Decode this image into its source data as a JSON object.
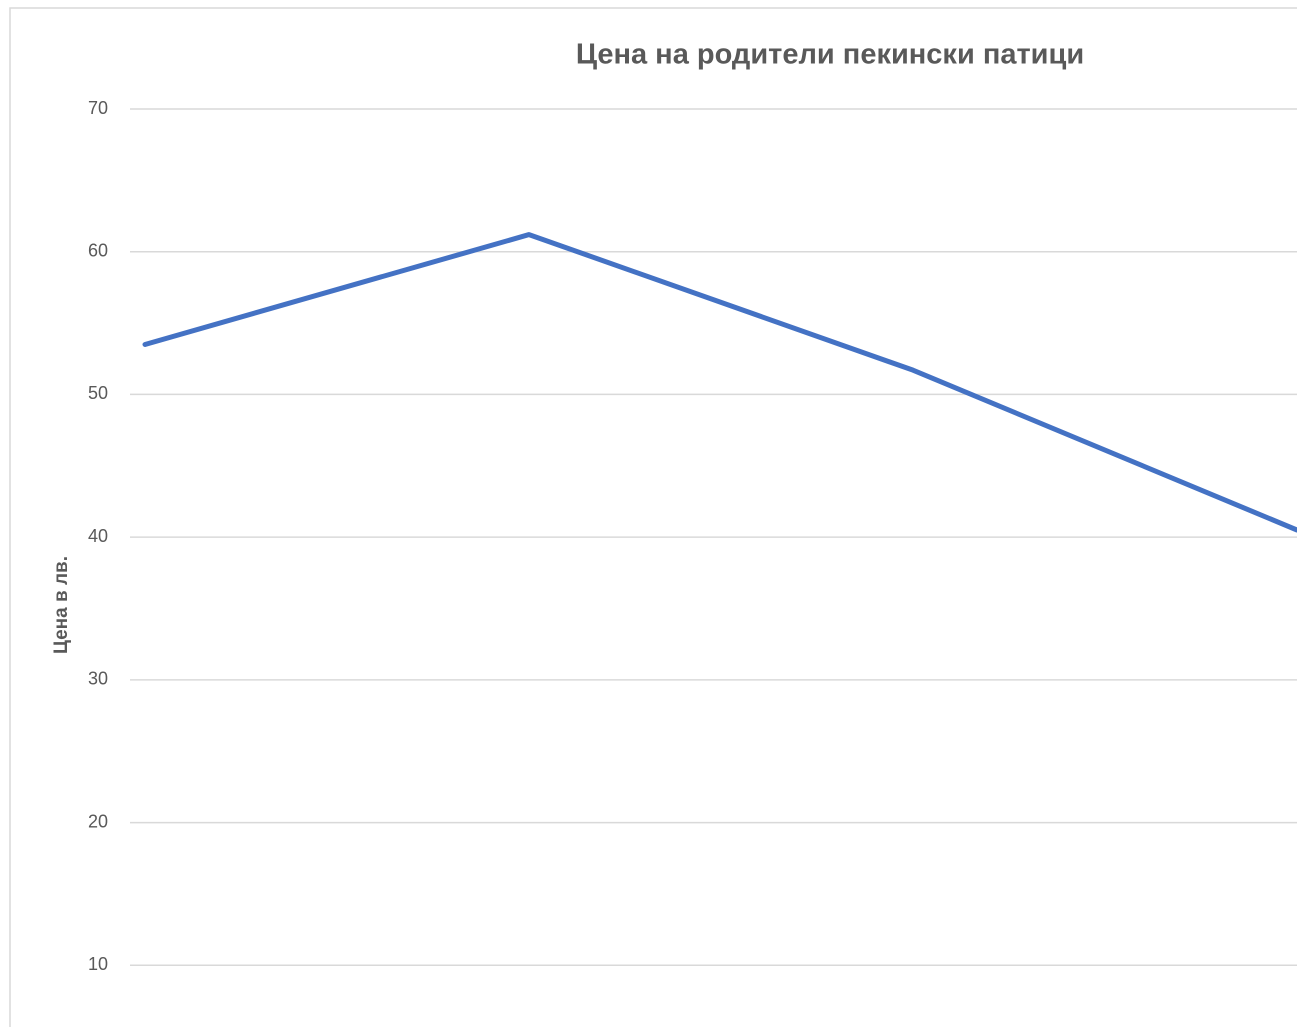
{
  "chart_data": {
    "type": "line",
    "title": "Цена на родители пекински патици",
    "ylabel": "Цена в лв.",
    "categories": [
      null,
      null,
      null,
      null
    ],
    "series": [
      {
        "name": null,
        "color": "#4472c4",
        "values": [
          53.5,
          61.2,
          51.7,
          40.5
        ]
      }
    ],
    "ylim": [
      0,
      70
    ],
    "yticks": [
      10,
      20,
      30,
      40,
      50,
      60,
      70
    ],
    "grid": true
  }
}
